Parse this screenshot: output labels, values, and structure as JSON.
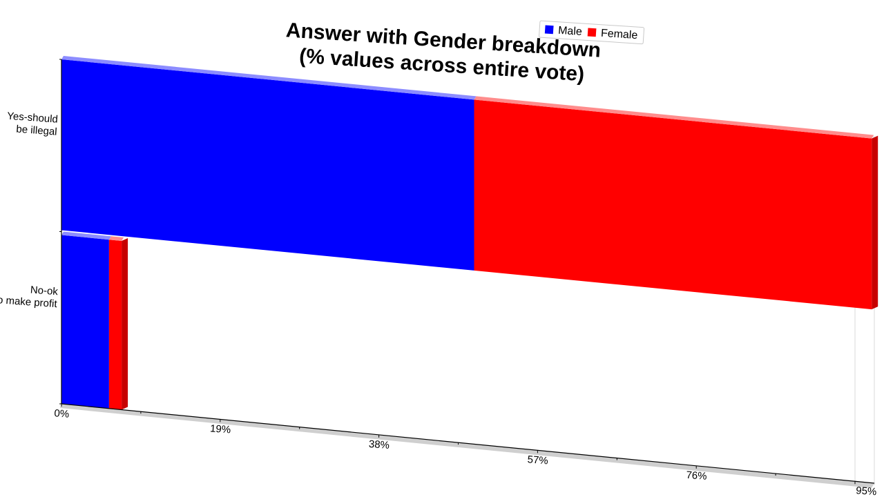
{
  "chart_data": {
    "type": "bar",
    "orientation": "horizontal",
    "stacked": true,
    "title": [
      "Answer with Gender breakdown",
      "(% values across entire vote)"
    ],
    "categories": [
      "Yes-should be illegal",
      "No-ok to make profit"
    ],
    "series": [
      {
        "name": "Male",
        "color": "#0000ff",
        "values": [
          49.4,
          5.7
        ]
      },
      {
        "name": "Female",
        "color": "#ff0000",
        "values": [
          47.6,
          1.5
        ]
      }
    ],
    "xlim": [
      0,
      95
    ],
    "ticks": [
      "0%",
      "19%",
      "38%",
      "57%",
      "76%",
      "95%"
    ],
    "legend": "top-right",
    "grid": false
  }
}
